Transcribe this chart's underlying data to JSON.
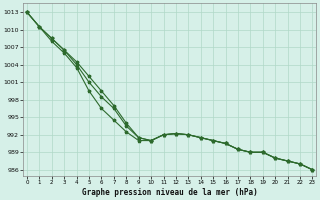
{
  "title": "Graphe pression niveau de la mer (hPa)",
  "background_color": "#d6f0e8",
  "grid_color": "#b0d8c8",
  "line_color": "#2d6a2d",
  "x_values": [
    0,
    1,
    2,
    3,
    4,
    5,
    6,
    7,
    8,
    9,
    10,
    11,
    12,
    13,
    14,
    15,
    16,
    17,
    18,
    19,
    20,
    21,
    22,
    23
  ],
  "line1": [
    1013.0,
    1010.5,
    1008.5,
    1006.5,
    1004.5,
    1002.0,
    999.5,
    997.0,
    994.0,
    991.5,
    991.0,
    992.0,
    992.2,
    992.0,
    991.5,
    991.0,
    990.5,
    989.5,
    989.0,
    989.0,
    988.0,
    987.5,
    987.0,
    986.0
  ],
  "line2": [
    1013.0,
    1010.5,
    1008.5,
    1006.5,
    1004.0,
    1001.0,
    998.5,
    996.5,
    993.5,
    991.5,
    991.0,
    992.0,
    992.2,
    992.0,
    991.5,
    991.0,
    990.5,
    989.5,
    989.0,
    989.0,
    988.0,
    987.5,
    987.0,
    986.0
  ],
  "line3": [
    1013.0,
    1010.5,
    1008.0,
    1006.0,
    1003.5,
    999.5,
    996.5,
    994.5,
    992.5,
    991.0,
    991.0,
    992.0,
    992.2,
    992.0,
    991.5,
    991.0,
    990.5,
    989.5,
    989.0,
    989.0,
    988.0,
    987.5,
    987.0,
    986.0
  ],
  "ylim_min": 985.0,
  "ylim_max": 1014.5,
  "yticks": [
    986,
    989,
    992,
    995,
    998,
    1001,
    1004,
    1007,
    1010,
    1013
  ],
  "xlim_min": -0.3,
  "xlim_max": 23.3,
  "figwidth": 3.2,
  "figheight": 2.0,
  "dpi": 100
}
